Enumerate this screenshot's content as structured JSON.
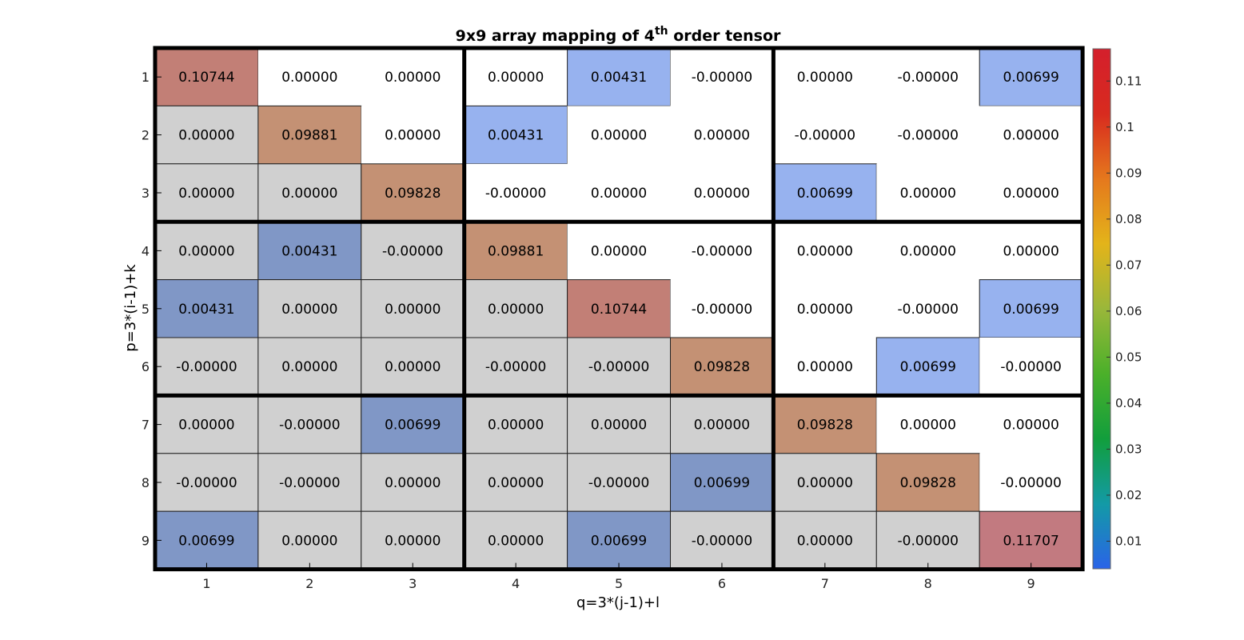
{
  "chart_data": {
    "type": "heatmap",
    "title_main": "9x9 array mapping of 4",
    "title_sup": "th",
    "title_end": " order tensor",
    "xlabel": "q=3*(j-1)+l",
    "ylabel": "p=3*(i-1)+k",
    "x_ticks": [
      "1",
      "2",
      "3",
      "4",
      "5",
      "6",
      "7",
      "8",
      "9"
    ],
    "y_ticks": [
      "1",
      "2",
      "3",
      "4",
      "5",
      "6",
      "7",
      "8",
      "9"
    ],
    "cells": [
      [
        "0.10744",
        "0.00000",
        "0.00000",
        "0.00000",
        "0.00431",
        "-0.00000",
        "0.00000",
        "-0.00000",
        "0.00699"
      ],
      [
        "0.00000",
        "0.09881",
        "0.00000",
        "0.00431",
        "0.00000",
        "0.00000",
        "-0.00000",
        "-0.00000",
        "0.00000"
      ],
      [
        "0.00000",
        "0.00000",
        "0.09828",
        "-0.00000",
        "0.00000",
        "0.00000",
        "0.00699",
        "0.00000",
        "0.00000"
      ],
      [
        "0.00000",
        "0.00431",
        "-0.00000",
        "0.09881",
        "0.00000",
        "-0.00000",
        "0.00000",
        "0.00000",
        "0.00000"
      ],
      [
        "0.00431",
        "0.00000",
        "0.00000",
        "0.00000",
        "0.10744",
        "-0.00000",
        "0.00000",
        "-0.00000",
        "0.00699"
      ],
      [
        "-0.00000",
        "0.00000",
        "0.00000",
        "-0.00000",
        "-0.00000",
        "0.09828",
        "0.00000",
        "0.00699",
        "-0.00000"
      ],
      [
        "0.00000",
        "-0.00000",
        "0.00699",
        "0.00000",
        "0.00000",
        "0.00000",
        "0.09828",
        "0.00000",
        "0.00000"
      ],
      [
        "-0.00000",
        "-0.00000",
        "0.00000",
        "0.00000",
        "-0.00000",
        "0.00699",
        "0.00000",
        "0.09828",
        "-0.00000"
      ],
      [
        "0.00699",
        "0.00000",
        "0.00000",
        "0.00000",
        "0.00699",
        "-0.00000",
        "0.00000",
        "-0.00000",
        "0.11707"
      ]
    ],
    "colorbar": {
      "ticks": [
        "0.01",
        "0.02",
        "0.03",
        "0.04",
        "0.05",
        "0.06",
        "0.07",
        "0.08",
        "0.09",
        "0.1",
        "0.11"
      ],
      "tick_values": [
        0.01,
        0.02,
        0.03,
        0.04,
        0.05,
        0.06,
        0.07,
        0.08,
        0.09,
        0.1,
        0.11
      ],
      "range": [
        0.004,
        0.117
      ],
      "colors": [
        "#2a63e8",
        "#139aa6",
        "#129e3c",
        "#4bb02a",
        "#9ab73a",
        "#e3b41a",
        "#e5781d",
        "#d82b1f",
        "#d41f2c"
      ]
    },
    "block_separators": [
      3,
      6
    ],
    "background_colors": {
      "white": "#ffffff",
      "gray": "#d0d0d0",
      "offdiag_blue": "#97b2ef",
      "offdiag_blue_gray": "#8097c6",
      "diag_brown": "#c49174",
      "diag_reddish": "#c27f76",
      "diag_pink": "#c27a80"
    }
  }
}
